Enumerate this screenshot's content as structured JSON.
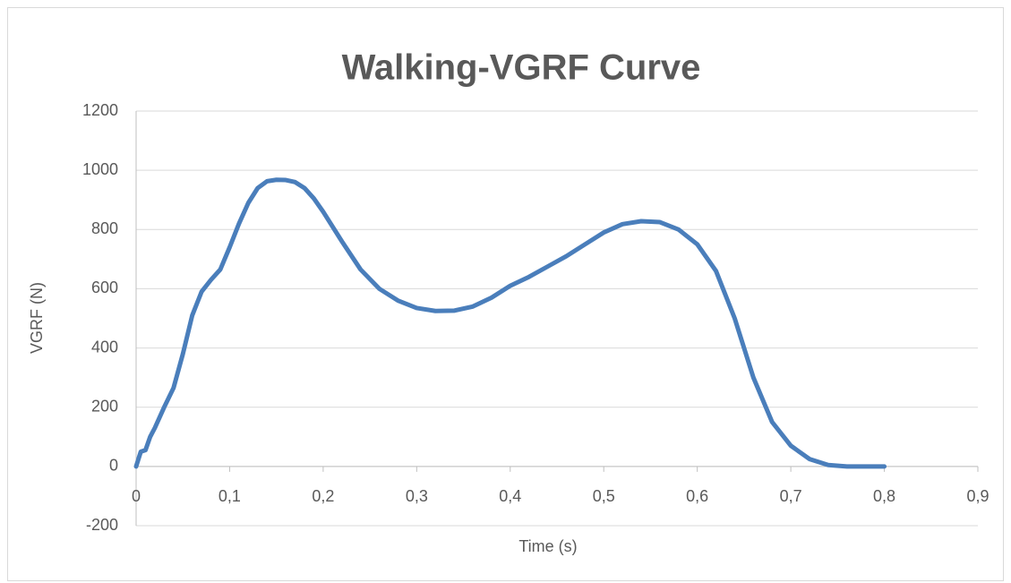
{
  "chart_data": {
    "type": "line",
    "title": "Walking-VGRF Curve",
    "xlabel": "Time (s)",
    "ylabel": "VGRF (N)",
    "x": [
      0,
      0.005,
      0.01,
      0.015,
      0.02,
      0.03,
      0.04,
      0.05,
      0.06,
      0.07,
      0.08,
      0.09,
      0.1,
      0.11,
      0.12,
      0.13,
      0.14,
      0.15,
      0.16,
      0.17,
      0.18,
      0.19,
      0.2,
      0.22,
      0.24,
      0.26,
      0.28,
      0.3,
      0.32,
      0.34,
      0.36,
      0.38,
      0.4,
      0.42,
      0.44,
      0.46,
      0.48,
      0.5,
      0.52,
      0.54,
      0.56,
      0.58,
      0.6,
      0.62,
      0.64,
      0.66,
      0.68,
      0.7,
      0.72,
      0.74,
      0.76,
      0.78,
      0.8
    ],
    "values": [
      0,
      50,
      55,
      100,
      130,
      200,
      265,
      380,
      510,
      590,
      630,
      665,
      740,
      820,
      890,
      940,
      963,
      968,
      967,
      960,
      940,
      905,
      860,
      760,
      665,
      600,
      560,
      535,
      525,
      526,
      540,
      570,
      610,
      640,
      675,
      710,
      750,
      790,
      818,
      828,
      825,
      800,
      750,
      660,
      500,
      300,
      150,
      70,
      25,
      5,
      0,
      0,
      0
    ],
    "color": "#4a7ebb",
    "xlim": [
      0,
      0.9
    ],
    "xticks": [
      0,
      {
        "value": 0.1,
        "label": "0,1"
      },
      {
        "value": 0.2,
        "label": "0,2"
      },
      {
        "value": 0.3,
        "label": "0,3"
      },
      {
        "value": 0.4,
        "label": "0,4"
      },
      {
        "value": 0.5,
        "label": "0,5"
      },
      {
        "value": 0.6,
        "label": "0,6"
      },
      {
        "value": 0.7,
        "label": "0,7"
      },
      {
        "value": 0.8,
        "label": "0,8"
      },
      {
        "value": 0.9,
        "label": "0,9"
      }
    ],
    "ylim": [
      -200,
      1200
    ],
    "yticks": [
      -200,
      0,
      200,
      400,
      600,
      800,
      1000,
      1200
    ],
    "grid": true
  }
}
